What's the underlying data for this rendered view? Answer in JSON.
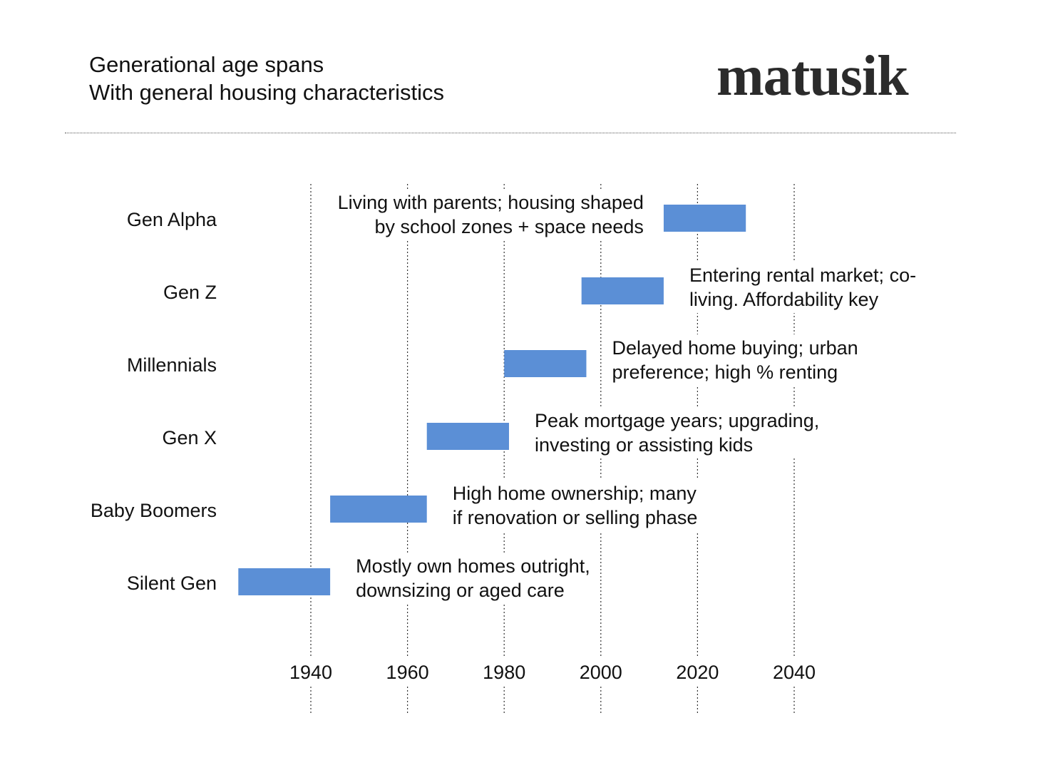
{
  "header": {
    "title": "Generational age spans",
    "subtitle": "With general housing characteristics",
    "logo_text": "matusik"
  },
  "chart_data": {
    "type": "bar",
    "orientation": "horizontal-floating",
    "title": "Generational age spans",
    "subtitle": "With general housing characteristics",
    "xlabel": "",
    "ylabel": "",
    "xlim": [
      1925,
      2050
    ],
    "xticks": [
      1940,
      1960,
      1980,
      2000,
      2020,
      2040
    ],
    "grid": "vertical dotted",
    "bar_color": "#5b8fd6",
    "categories": [
      "Gen Alpha",
      "Gen Z",
      "Millennials",
      "Gen X",
      "Baby Boomers",
      "Silent Gen"
    ],
    "series": [
      {
        "spans": [
          {
            "category": "Gen Alpha",
            "start": 2013,
            "end": 2030,
            "annotation": [
              "Living with parents; housing shaped",
              "by school zones + space needs"
            ],
            "annotation_side": "left"
          },
          {
            "category": "Gen Z",
            "start": 1996,
            "end": 2013,
            "annotation": [
              "Entering rental market; co-",
              "living.  Affordability key"
            ],
            "annotation_side": "right"
          },
          {
            "category": "Millennials",
            "start": 1980,
            "end": 1997,
            "annotation": [
              "Delayed home buying; urban",
              "preference; high % renting"
            ],
            "annotation_side": "right"
          },
          {
            "category": "Gen X",
            "start": 1964,
            "end": 1981,
            "annotation": [
              "Peak mortgage years; upgrading,",
              "investing or assisting kids"
            ],
            "annotation_side": "right"
          },
          {
            "category": "Baby Boomers",
            "start": 1944,
            "end": 1964,
            "annotation": [
              "High home ownership; many",
              "if renovation or selling phase"
            ],
            "annotation_side": "right"
          },
          {
            "category": "Silent Gen",
            "start": 1925,
            "end": 1944,
            "annotation": [
              "Mostly own homes outright,",
              "downsizing or aged care"
            ],
            "annotation_side": "right"
          }
        ]
      }
    ]
  }
}
